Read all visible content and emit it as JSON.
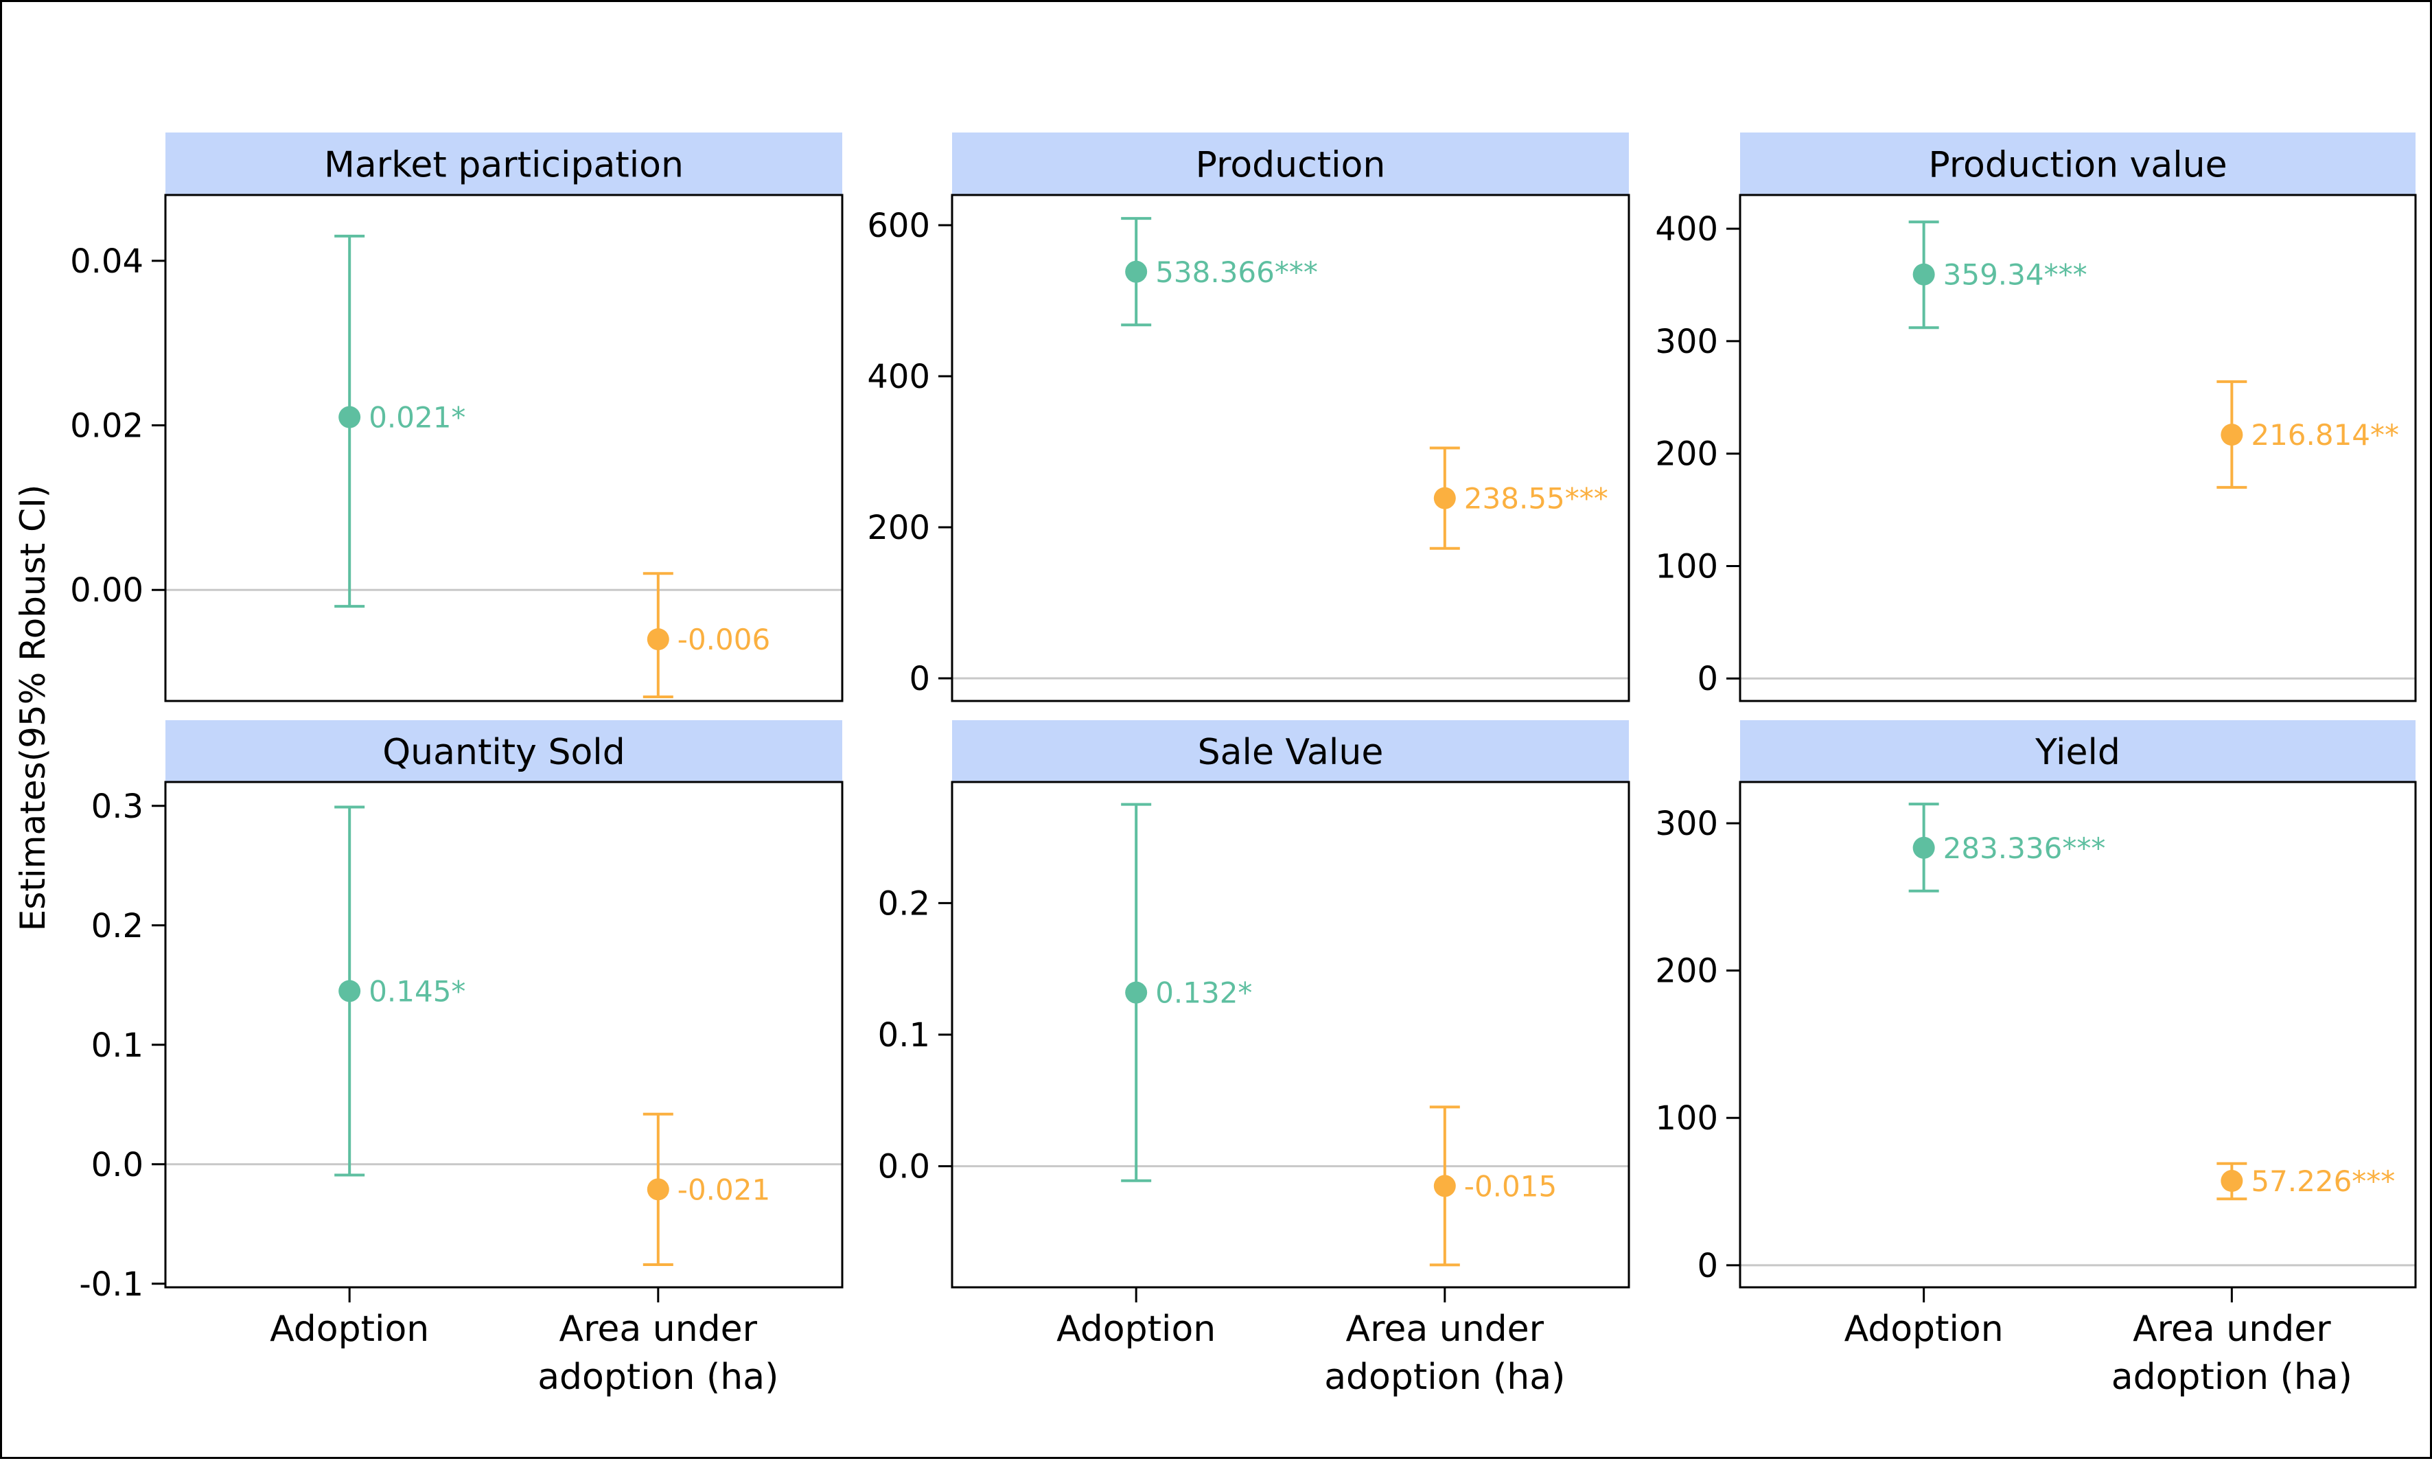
{
  "chart_data": {
    "type": "errorbar-facets",
    "ylabel": "Estimates(95% Robust CI)",
    "categories": [
      "Adoption",
      "Area under\nadoption (ha)"
    ],
    "colors": {
      "Adoption": "#5ebfa0",
      "Area under adoption (ha)": "#fbb040",
      "strip_fill": "#c3d6fb",
      "zero_line": "#c8c8c8"
    },
    "panels": [
      {
        "title": "Market participation",
        "ylim": [
          -0.0135,
          0.048
        ],
        "yticks": [
          0.0,
          0.02,
          0.04
        ],
        "ytick_labels": [
          "0.00",
          "0.02",
          "0.04"
        ],
        "points": [
          {
            "category": "Adoption",
            "estimate": 0.021,
            "ci": [
              -0.002,
              0.043
            ],
            "label": "0.021*"
          },
          {
            "category": "Area under adoption (ha)",
            "estimate": -0.006,
            "ci": [
              -0.013,
              0.002
            ],
            "label": "-0.006"
          }
        ]
      },
      {
        "title": "Production",
        "ylim": [
          -30,
          640
        ],
        "yticks": [
          0,
          200,
          400,
          600
        ],
        "ytick_labels": [
          "0",
          "200",
          "400",
          "600"
        ],
        "points": [
          {
            "category": "Adoption",
            "estimate": 538.366,
            "ci": [
              468,
              609
            ],
            "label": "538.366***"
          },
          {
            "category": "Area under adoption (ha)",
            "estimate": 238.55,
            "ci": [
              172,
              305
            ],
            "label": "238.55***"
          }
        ]
      },
      {
        "title": "Production value",
        "ylim": [
          -20,
          430
        ],
        "yticks": [
          0,
          100,
          200,
          300,
          400
        ],
        "ytick_labels": [
          "0",
          "100",
          "200",
          "300",
          "400"
        ],
        "points": [
          {
            "category": "Adoption",
            "estimate": 359.34,
            "ci": [
              312,
              406
            ],
            "label": "359.34***"
          },
          {
            "category": "Area under adoption (ha)",
            "estimate": 216.814,
            "ci": [
              170,
              264
            ],
            "label": "216.814**"
          }
        ]
      },
      {
        "title": "Quantity Sold",
        "ylim": [
          -0.103,
          0.32
        ],
        "yticks": [
          -0.1,
          0.0,
          0.1,
          0.2,
          0.3
        ],
        "ytick_labels": [
          "-0.1",
          "0.0",
          "0.1",
          "0.2",
          "0.3"
        ],
        "points": [
          {
            "category": "Adoption",
            "estimate": 0.145,
            "ci": [
              -0.009,
              0.299
            ],
            "label": "0.145*"
          },
          {
            "category": "Area under adoption (ha)",
            "estimate": -0.021,
            "ci": [
              -0.084,
              0.042
            ],
            "label": "-0.021"
          }
        ]
      },
      {
        "title": "Sale Value",
        "ylim": [
          -0.092,
          0.292
        ],
        "yticks": [
          0.0,
          0.1,
          0.2
        ],
        "ytick_labels": [
          "0.0",
          "0.1",
          "0.2"
        ],
        "points": [
          {
            "category": "Adoption",
            "estimate": 0.132,
            "ci": [
              -0.011,
              0.275
            ],
            "label": "0.132*"
          },
          {
            "category": "Area under adoption (ha)",
            "estimate": -0.015,
            "ci": [
              -0.075,
              0.045
            ],
            "label": "-0.015"
          }
        ]
      },
      {
        "title": "Yield",
        "ylim": [
          -15,
          328
        ],
        "yticks": [
          0,
          100,
          200,
          300
        ],
        "ytick_labels": [
          "0",
          "100",
          "200",
          "300"
        ],
        "points": [
          {
            "category": "Adoption",
            "estimate": 283.336,
            "ci": [
              254,
              313
            ],
            "label": "283.336***"
          },
          {
            "category": "Area under adoption (ha)",
            "estimate": 57.226,
            "ci": [
              45,
              69
            ],
            "label": "57.226***"
          }
        ]
      }
    ]
  }
}
